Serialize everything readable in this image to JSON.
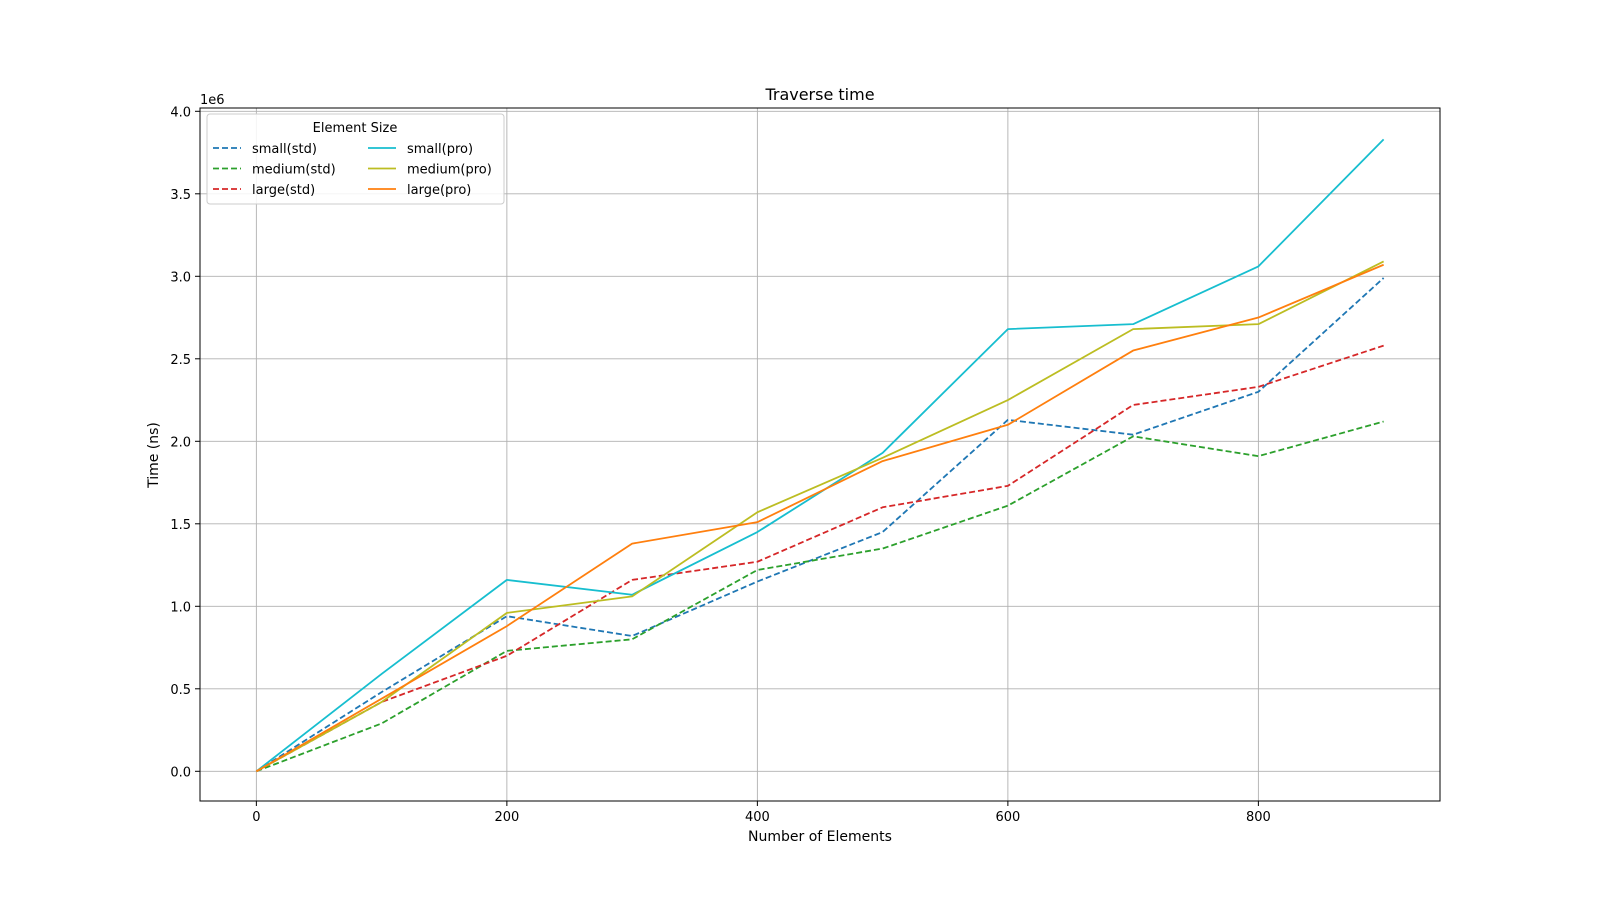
{
  "chart_data": {
    "type": "line",
    "title": "Traverse time",
    "xlabel": "Number of Elements",
    "ylabel": "Time (ns)",
    "y_offset_label": "1e6",
    "y_scale": 1000000,
    "xlim": [
      -45,
      945
    ],
    "ylim": [
      -180000,
      4020000
    ],
    "x_ticks": [
      0,
      200,
      400,
      600,
      800
    ],
    "x_tick_labels": [
      "0",
      "200",
      "400",
      "600",
      "800"
    ],
    "y_ticks": [
      0,
      500000,
      1000000,
      1500000,
      2000000,
      2500000,
      3000000,
      3500000,
      4000000
    ],
    "y_tick_labels": [
      "0.0",
      "0.5",
      "1.0",
      "1.5",
      "2.0",
      "2.5",
      "3.0",
      "3.5",
      "4.0"
    ],
    "grid": true,
    "legend": {
      "title": "Element Size",
      "placement": "top-left",
      "columns": 2
    },
    "x": [
      0,
      100,
      200,
      300,
      400,
      500,
      600,
      700,
      800,
      900
    ],
    "series": [
      {
        "name": "small(std)",
        "color": "#1f77b4",
        "dashed": true,
        "values": [
          0,
          480000,
          940000,
          820000,
          1150000,
          1450000,
          2130000,
          2040000,
          2300000,
          2990000
        ]
      },
      {
        "name": "medium(std)",
        "color": "#2ca02c",
        "dashed": true,
        "values": [
          0,
          290000,
          730000,
          800000,
          1220000,
          1350000,
          1610000,
          2030000,
          1910000,
          2120000
        ]
      },
      {
        "name": "large(std)",
        "color": "#d62728",
        "dashed": true,
        "values": [
          0,
          420000,
          700000,
          1160000,
          1270000,
          1600000,
          1730000,
          2220000,
          2330000,
          2580000
        ]
      },
      {
        "name": "small(pro)",
        "color": "#17becf",
        "dashed": false,
        "values": [
          0,
          590000,
          1160000,
          1070000,
          1450000,
          1930000,
          2680000,
          2710000,
          3060000,
          3830000
        ]
      },
      {
        "name": "medium(pro)",
        "color": "#bcbd22",
        "dashed": false,
        "values": [
          0,
          420000,
          960000,
          1060000,
          1570000,
          1900000,
          2250000,
          2680000,
          2710000,
          3090000
        ]
      },
      {
        "name": "large(pro)",
        "color": "#ff7f0e",
        "dashed": false,
        "values": [
          0,
          440000,
          880000,
          1380000,
          1510000,
          1880000,
          2100000,
          2550000,
          2750000,
          3070000
        ]
      }
    ]
  }
}
